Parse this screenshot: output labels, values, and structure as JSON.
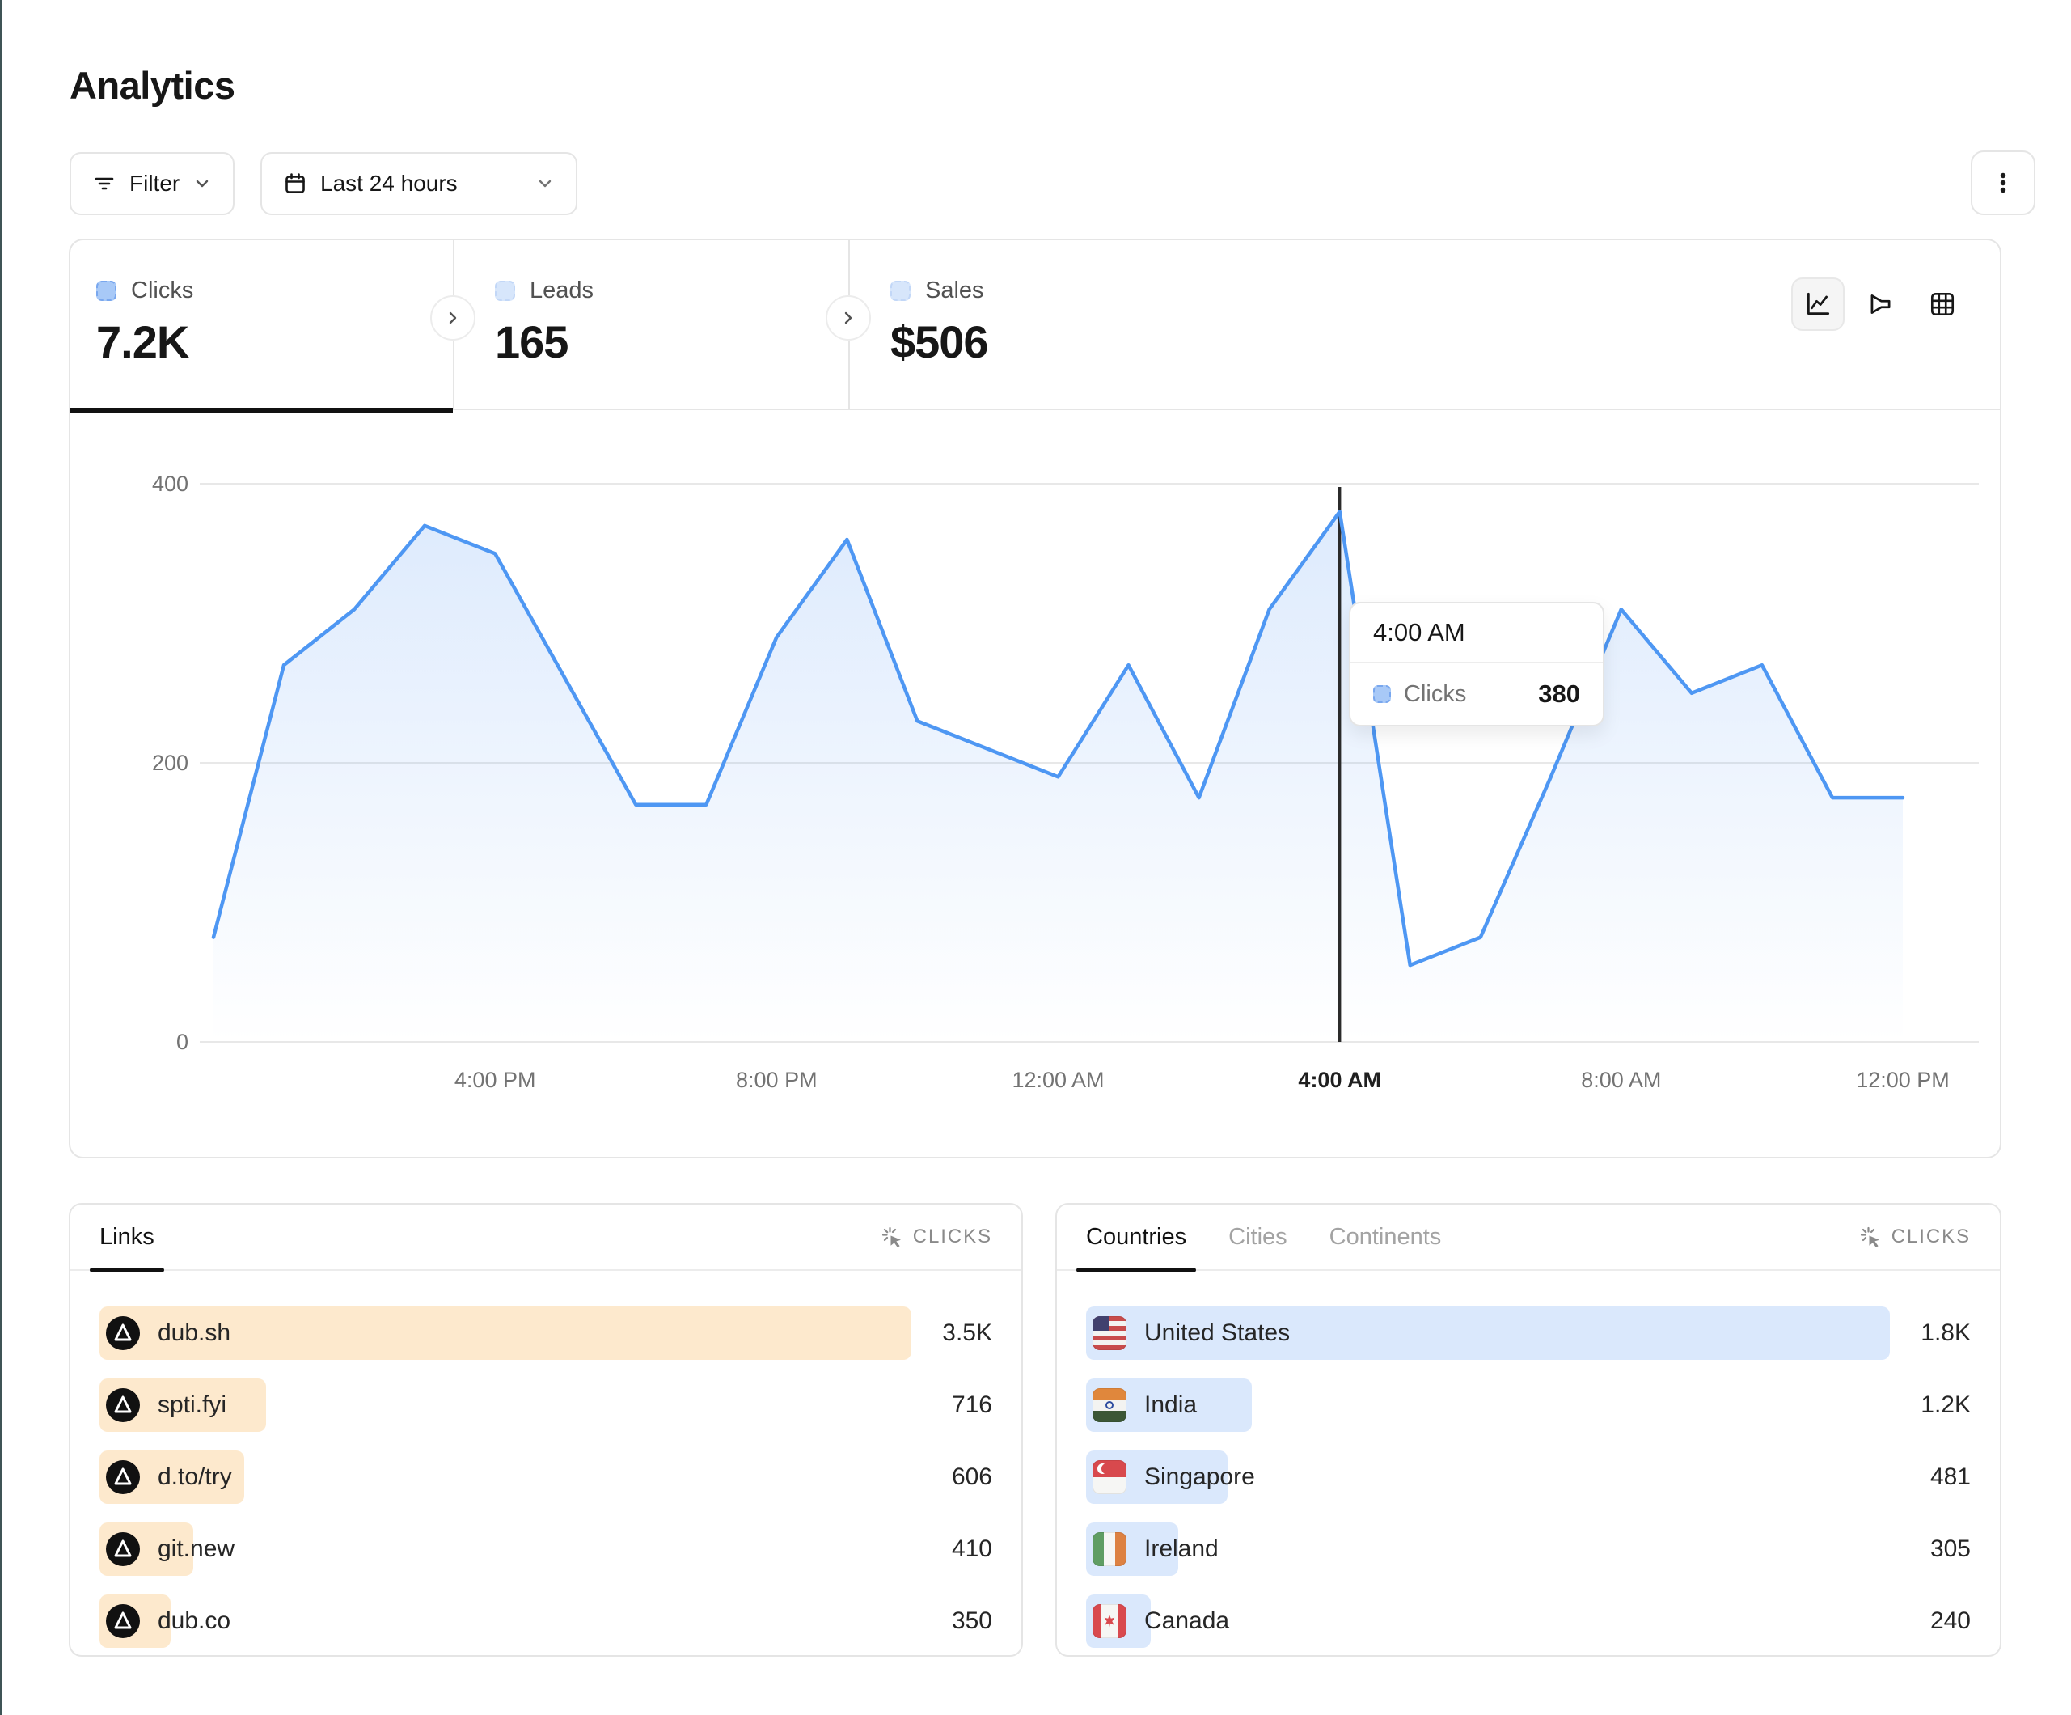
{
  "page": {
    "title": "Analytics"
  },
  "toolbar": {
    "filter_label": "Filter",
    "date_range_label": "Last 24 hours",
    "icons": [
      "filter-lines-icon",
      "calendar-icon",
      "chevron-down-icon",
      "kebab-menu-icon"
    ]
  },
  "stats": [
    {
      "label": "Clicks",
      "value": "7.2K",
      "active": true
    },
    {
      "label": "Leads",
      "value": "165",
      "active": false
    },
    {
      "label": "Sales",
      "value": "$506",
      "active": false
    }
  ],
  "chart_views": [
    {
      "icon": "line-chart-icon",
      "active": true
    },
    {
      "icon": "funnel-icon",
      "active": false
    },
    {
      "icon": "table-grid-icon",
      "active": false
    }
  ],
  "chart_data": {
    "type": "area",
    "title": "Clicks over last 24 hours",
    "ylim": [
      0,
      400
    ],
    "yticks": [
      0,
      200,
      400
    ],
    "x_ticks": [
      {
        "label": "4:00 PM",
        "hour": 4
      },
      {
        "label": "8:00 PM",
        "hour": 8
      },
      {
        "label": "12:00 AM",
        "hour": 12
      },
      {
        "label": "4:00 AM",
        "hour": 16
      },
      {
        "label": "8:00 AM",
        "hour": 20
      },
      {
        "label": "12:00 PM",
        "hour": 24
      }
    ],
    "grid": true,
    "legend_position": "none",
    "series": [
      {
        "name": "Clicks",
        "points": [
          {
            "t": "12:00 PM",
            "v": 75
          },
          {
            "t": "1:00 PM",
            "v": 270
          },
          {
            "t": "2:00 PM",
            "v": 310
          },
          {
            "t": "3:00 PM",
            "v": 370
          },
          {
            "t": "4:00 PM",
            "v": 350
          },
          {
            "t": "5:00 PM",
            "v": 260
          },
          {
            "t": "6:00 PM",
            "v": 170
          },
          {
            "t": "7:00 PM",
            "v": 170
          },
          {
            "t": "8:00 PM",
            "v": 290
          },
          {
            "t": "9:00 PM",
            "v": 360
          },
          {
            "t": "10:00 PM",
            "v": 230
          },
          {
            "t": "11:00 PM",
            "v": 210
          },
          {
            "t": "12:00 AM",
            "v": 190
          },
          {
            "t": "1:00 AM",
            "v": 270
          },
          {
            "t": "2:00 AM",
            "v": 175
          },
          {
            "t": "3:00 AM",
            "v": 310
          },
          {
            "t": "4:00 AM",
            "v": 380
          },
          {
            "t": "5:00 AM",
            "v": 55
          },
          {
            "t": "6:00 AM",
            "v": 75
          },
          {
            "t": "7:00 AM",
            "v": 190
          },
          {
            "t": "8:00 AM",
            "v": 310
          },
          {
            "t": "9:00 AM",
            "v": 250
          },
          {
            "t": "10:00 AM",
            "v": 270
          },
          {
            "t": "11:00 AM",
            "v": 175
          },
          {
            "t": "12:00 PM",
            "v": 175
          }
        ]
      }
    ],
    "tooltip": {
      "time": "4:00 AM",
      "label": "Clicks",
      "value": "380",
      "point_index": 16
    }
  },
  "panels": {
    "links": {
      "tabs": [
        {
          "label": "Links",
          "active": true
        }
      ],
      "metric_label": "CLICKS",
      "metric_icon": "cursor-click-icon",
      "row_icon": "dub-logo",
      "rows": [
        {
          "label": "dub.sh",
          "value": "3.5K",
          "bar_pct": 100
        },
        {
          "label": "spti.fyi",
          "value": "716",
          "bar_pct": 20.5
        },
        {
          "label": "d.to/try",
          "value": "606",
          "bar_pct": 17.8
        },
        {
          "label": "git.new",
          "value": "410",
          "bar_pct": 11.6
        },
        {
          "label": "dub.co",
          "value": "350",
          "bar_pct": 8.8
        }
      ]
    },
    "countries": {
      "tabs": [
        {
          "label": "Countries",
          "active": true
        },
        {
          "label": "Cities",
          "active": false
        },
        {
          "label": "Continents",
          "active": false
        }
      ],
      "metric_label": "CLICKS",
      "metric_icon": "cursor-click-icon",
      "rows": [
        {
          "label": "United States",
          "value": "1.8K",
          "flag": "us",
          "icon": "flag-us",
          "bar_pct": 100
        },
        {
          "label": "India",
          "value": "1.2K",
          "flag": "in",
          "icon": "flag-india",
          "bar_pct": 20.6
        },
        {
          "label": "Singapore",
          "value": "481",
          "flag": "sg",
          "icon": "flag-singapore",
          "bar_pct": 17.6
        },
        {
          "label": "Ireland",
          "value": "305",
          "flag": "ie",
          "icon": "flag-ireland",
          "bar_pct": 11.5
        },
        {
          "label": "Canada",
          "value": "240",
          "flag": "ca",
          "icon": "flag-canada",
          "bar_pct": 8
        }
      ]
    }
  },
  "colors": {
    "accent_line": "#4e97f3",
    "area_fill_top": "rgba(86,152,244,0.20)",
    "area_fill_bottom": "rgba(86,152,244,0)",
    "legend_swatch_fill": "#a8c9f7",
    "legend_swatch_border": "#79a7ee",
    "links_bar": "#fde9cd",
    "countries_bar": "#dae8fc",
    "crosshair": "#2b2b2b",
    "page_edge": "#3f5456"
  }
}
